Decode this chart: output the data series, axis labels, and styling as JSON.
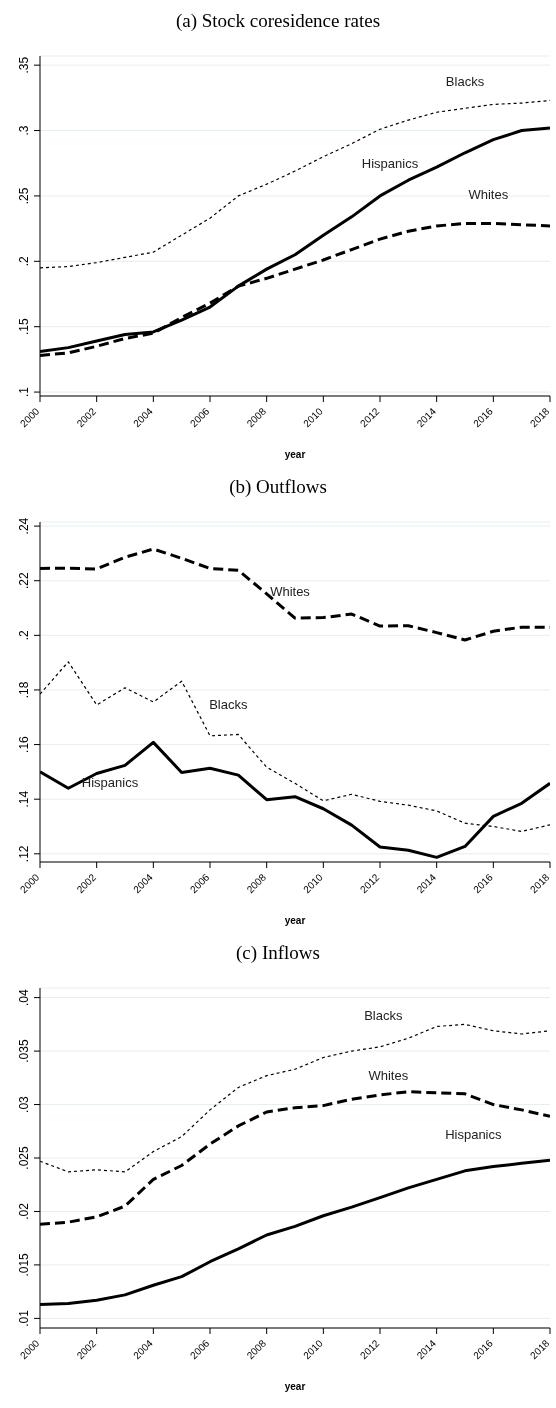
{
  "chart_data": [
    {
      "type": "line",
      "title": "(a) Stock coresidence rates",
      "xlabel": "year",
      "x": [
        2000,
        2001,
        2002,
        2003,
        2004,
        2005,
        2006,
        2007,
        2008,
        2009,
        2010,
        2011,
        2012,
        2013,
        2014,
        2015,
        2016,
        2017,
        2018
      ],
      "xlim": [
        2000,
        2018
      ],
      "xticks": [
        2000,
        2002,
        2004,
        2006,
        2008,
        2010,
        2012,
        2014,
        2016,
        2018
      ],
      "ylim": [
        0.097,
        0.357
      ],
      "yticks": [
        {
          "value": 0.1,
          "label": ".1"
        },
        {
          "value": 0.15,
          "label": ".15"
        },
        {
          "value": 0.2,
          "label": ".2"
        },
        {
          "value": 0.25,
          "label": ".25"
        },
        {
          "value": 0.3,
          "label": ".3"
        },
        {
          "value": 0.35,
          "label": ".35"
        }
      ],
      "grid": "y",
      "legend": false,
      "marker": "none",
      "series": [
        {
          "name": "Blacks",
          "color": "#000000",
          "line_style": "dotted",
          "values": [
            0.195,
            0.196,
            0.199,
            0.203,
            0.207,
            0.22,
            0.233,
            0.25,
            0.259,
            0.269,
            0.28,
            0.29,
            0.301,
            0.308,
            0.314,
            0.317,
            0.32,
            0.321,
            0.323
          ]
        },
        {
          "name": "Hispanics",
          "color": "#000000",
          "line_style": "solid",
          "values": [
            0.131,
            0.134,
            0.139,
            0.144,
            0.146,
            0.155,
            0.165,
            0.181,
            0.194,
            0.205,
            0.22,
            0.234,
            0.25,
            0.262,
            0.272,
            0.283,
            0.293,
            0.3,
            0.302
          ]
        },
        {
          "name": "Whites",
          "color": "#000000",
          "line_style": "dashed",
          "values": [
            0.128,
            0.13,
            0.135,
            0.141,
            0.145,
            0.157,
            0.168,
            0.181,
            0.187,
            0.194,
            0.201,
            0.209,
            0.217,
            0.223,
            0.227,
            0.229,
            0.229,
            0.228,
            0.227
          ]
        }
      ]
    },
    {
      "type": "line",
      "title": "(b) Outflows",
      "xlabel": "year",
      "x": [
        2000,
        2001,
        2002,
        2003,
        2004,
        2005,
        2006,
        2007,
        2008,
        2009,
        2010,
        2011,
        2012,
        2013,
        2014,
        2015,
        2016,
        2017,
        2018
      ],
      "xlim": [
        2000,
        2018
      ],
      "xticks": [
        2000,
        2002,
        2004,
        2006,
        2008,
        2010,
        2012,
        2014,
        2016,
        2018
      ],
      "ylim": [
        0.117,
        0.2415
      ],
      "yticks": [
        {
          "value": 0.12,
          "label": ".12"
        },
        {
          "value": 0.14,
          "label": ".14"
        },
        {
          "value": 0.16,
          "label": ".16"
        },
        {
          "value": 0.18,
          "label": ".18"
        },
        {
          "value": 0.2,
          "label": ".2"
        },
        {
          "value": 0.22,
          "label": ".22"
        },
        {
          "value": 0.24,
          "label": ".24"
        }
      ],
      "grid": "y",
      "legend": false,
      "marker": "none",
      "series": [
        {
          "name": "Whites",
          "color": "#000000",
          "line_style": "dashed",
          "values": [
            0.2245,
            0.2246,
            0.2243,
            0.2286,
            0.2316,
            0.2282,
            0.2245,
            0.2238,
            0.2152,
            0.2063,
            0.2065,
            0.2078,
            0.2034,
            0.2035,
            0.201,
            0.1983,
            0.2015,
            0.203,
            0.203
          ]
        },
        {
          "name": "Blacks",
          "color": "#000000",
          "line_style": "dotted",
          "values": [
            0.1785,
            0.1903,
            0.1745,
            0.1808,
            0.1756,
            0.1832,
            0.1632,
            0.1637,
            0.1517,
            0.1458,
            0.1394,
            0.1418,
            0.1392,
            0.1378,
            0.1357,
            0.1312,
            0.13,
            0.1282,
            0.1306
          ]
        },
        {
          "name": "Hispanics",
          "color": "#000000",
          "line_style": "solid",
          "values": [
            0.15,
            0.144,
            0.1494,
            0.1524,
            0.1608,
            0.1498,
            0.1513,
            0.1488,
            0.1398,
            0.1409,
            0.1365,
            0.1305,
            0.1225,
            0.1213,
            0.1187,
            0.1227,
            0.1337,
            0.1385,
            0.1458
          ]
        }
      ]
    },
    {
      "type": "line",
      "title": "(c) Inflows",
      "xlabel": "year",
      "x": [
        2000,
        2001,
        2002,
        2003,
        2004,
        2005,
        2006,
        2007,
        2008,
        2009,
        2010,
        2011,
        2012,
        2013,
        2014,
        2015,
        2016,
        2017,
        2018
      ],
      "xlim": [
        2000,
        2018
      ],
      "xticks": [
        2000,
        2002,
        2004,
        2006,
        2008,
        2010,
        2012,
        2014,
        2016,
        2018
      ],
      "ylim": [
        0.0091,
        0.0409
      ],
      "yticks": [
        {
          "value": 0.01,
          "label": ".01"
        },
        {
          "value": 0.015,
          "label": ".015"
        },
        {
          "value": 0.02,
          "label": ".02"
        },
        {
          "value": 0.025,
          "label": ".025"
        },
        {
          "value": 0.03,
          "label": ".03"
        },
        {
          "value": 0.035,
          "label": ".035"
        },
        {
          "value": 0.04,
          "label": ".04"
        }
      ],
      "grid": "y",
      "legend": false,
      "marker": "none",
      "series": [
        {
          "name": "Blacks",
          "color": "#000000",
          "line_style": "dotted",
          "values": [
            0.0247,
            0.0237,
            0.0239,
            0.0237,
            0.0256,
            0.027,
            0.0295,
            0.0316,
            0.0327,
            0.0333,
            0.0344,
            0.035,
            0.0354,
            0.0362,
            0.0373,
            0.0375,
            0.0369,
            0.0366,
            0.0369
          ]
        },
        {
          "name": "Whites",
          "color": "#000000",
          "line_style": "dashed",
          "values": [
            0.0188,
            0.019,
            0.0195,
            0.0205,
            0.023,
            0.0243,
            0.0263,
            0.028,
            0.0293,
            0.0297,
            0.0299,
            0.0305,
            0.0309,
            0.0312,
            0.0311,
            0.031,
            0.03,
            0.0295,
            0.0289
          ]
        },
        {
          "name": "Hispanics",
          "color": "#000000",
          "line_style": "solid",
          "values": [
            0.0113,
            0.0114,
            0.0117,
            0.0122,
            0.0131,
            0.0139,
            0.0153,
            0.0165,
            0.0178,
            0.0186,
            0.0196,
            0.0204,
            0.0213,
            0.0222,
            0.023,
            0.0238,
            0.0242,
            0.0245,
            0.0248
          ]
        }
      ]
    }
  ]
}
